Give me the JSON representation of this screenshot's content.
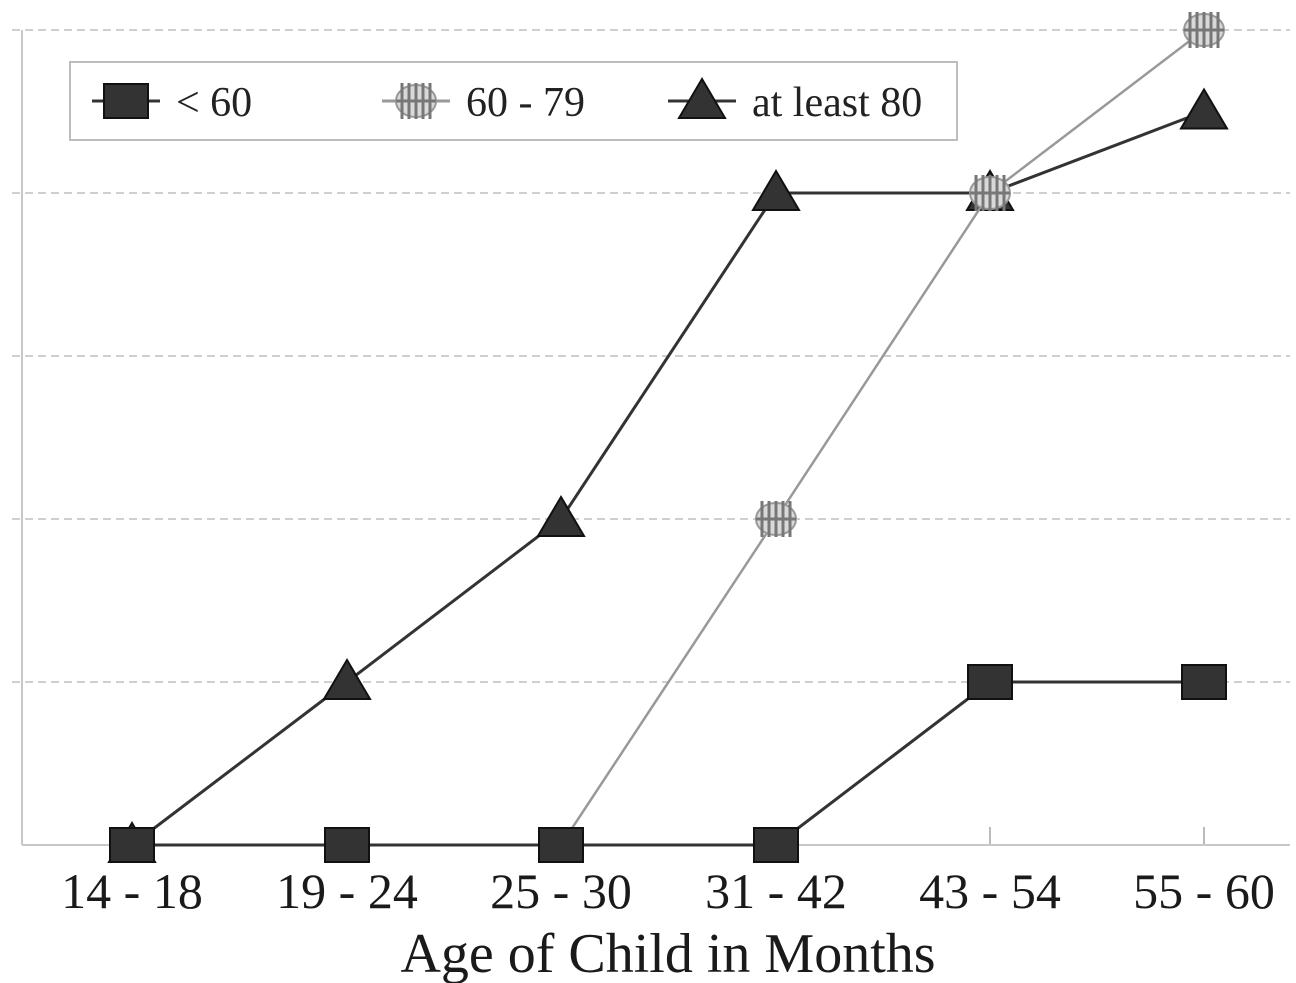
{
  "chart_data": {
    "type": "line",
    "categories": [
      "14 - 18",
      "19 - 24",
      "25 - 30",
      "31 - 42",
      "43 - 54",
      "55 - 60"
    ],
    "xlabel": "Age of Child in Months",
    "ylabel": "",
    "ylim": [
      0,
      5
    ],
    "grid": true,
    "legend_position": "top-left",
    "series": [
      {
        "name": "< 60",
        "values": [
          0,
          0,
          0,
          0,
          1,
          1
        ],
        "marker": "square",
        "color": "#333333"
      },
      {
        "name": "60 - 79",
        "values": [
          0,
          0,
          0,
          2,
          4,
          5
        ],
        "marker": "asterisk",
        "color": "#999999"
      },
      {
        "name": "at least 80",
        "values": [
          0,
          1,
          2,
          4,
          4,
          4.5
        ],
        "marker": "triangle",
        "color": "#333333"
      }
    ]
  }
}
